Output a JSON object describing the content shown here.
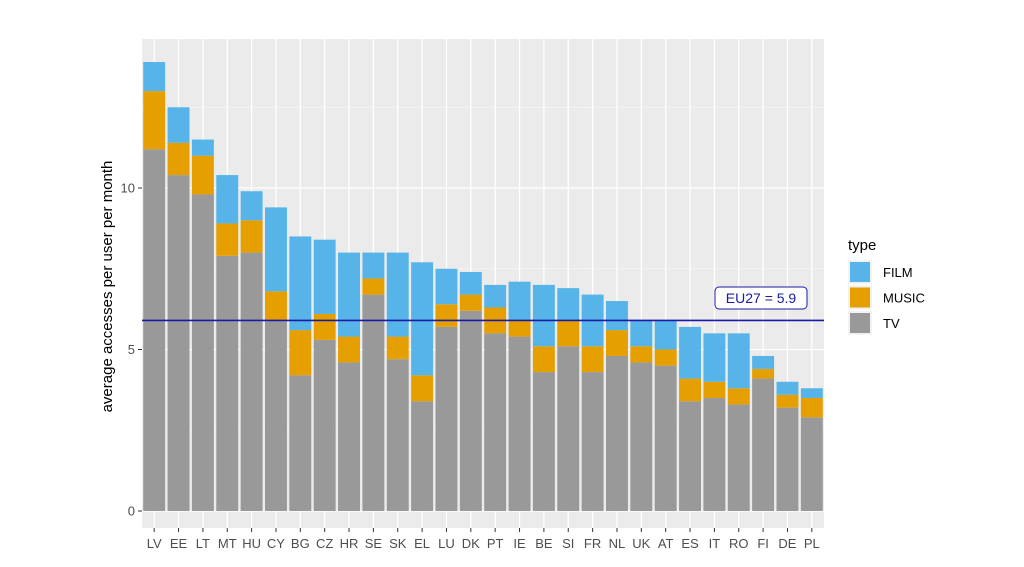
{
  "chart_data": {
    "type": "bar",
    "stacked": true,
    "title": "",
    "xlabel": "",
    "ylabel": "average accesses per user per month",
    "ylim": [
      0,
      14.4
    ],
    "yticks": [
      0,
      5,
      10
    ],
    "grid": true,
    "legend": {
      "title": "type",
      "position": "right",
      "entries": [
        "FILM",
        "MUSIC",
        "TV"
      ]
    },
    "colors": {
      "FILM": "#56b4e9",
      "MUSIC": "#e69f00",
      "TV": "#999999"
    },
    "categories": [
      "LV",
      "EE",
      "LT",
      "MT",
      "HU",
      "CY",
      "BG",
      "CZ",
      "HR",
      "SE",
      "SK",
      "EL",
      "LU",
      "DK",
      "PT",
      "IE",
      "BE",
      "SI",
      "FR",
      "NL",
      "UK",
      "AT",
      "ES",
      "IT",
      "RO",
      "FI",
      "DE",
      "PL"
    ],
    "series": [
      {
        "name": "TV",
        "values": [
          11.2,
          10.4,
          9.8,
          7.9,
          8.0,
          5.9,
          4.2,
          5.3,
          4.6,
          6.7,
          4.7,
          3.4,
          5.7,
          6.2,
          5.5,
          5.4,
          4.3,
          5.1,
          4.3,
          4.8,
          4.6,
          4.5,
          3.4,
          3.5,
          3.3,
          4.1,
          3.2,
          2.9
        ]
      },
      {
        "name": "MUSIC",
        "values": [
          1.8,
          1.0,
          1.2,
          1.0,
          1.0,
          0.9,
          1.4,
          0.8,
          0.8,
          0.5,
          0.7,
          0.8,
          0.7,
          0.5,
          0.8,
          0.5,
          0.8,
          0.8,
          0.8,
          0.8,
          0.5,
          0.5,
          0.7,
          0.5,
          0.5,
          0.3,
          0.4,
          0.6
        ]
      },
      {
        "name": "FILM",
        "values": [
          0.9,
          1.1,
          0.5,
          1.5,
          0.9,
          2.6,
          2.9,
          2.3,
          2.6,
          0.8,
          2.6,
          3.5,
          1.1,
          0.7,
          0.7,
          1.2,
          1.9,
          1.0,
          1.6,
          0.9,
          0.8,
          0.9,
          1.6,
          1.5,
          1.7,
          0.4,
          0.4,
          0.3
        ]
      }
    ],
    "reference_line": {
      "value": 5.9,
      "label": "EU27 = 5.9",
      "color": "#1a1aa6"
    }
  }
}
